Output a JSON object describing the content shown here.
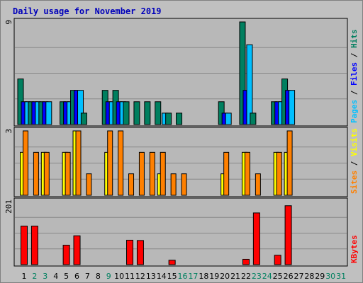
{
  "chart_data": {
    "type": "bar",
    "title": "Daily usage for November 2019",
    "x": [
      "1",
      "2",
      "3",
      "4",
      "5",
      "6",
      "7",
      "8",
      "9",
      "10",
      "11",
      "12",
      "13",
      "14",
      "15",
      "16",
      "17",
      "18",
      "19",
      "20",
      "21",
      "22",
      "23",
      "24",
      "25",
      "26",
      "27",
      "28",
      "29",
      "30",
      "31"
    ],
    "weekend_days": [
      "2",
      "3",
      "9",
      "16",
      "17",
      "23",
      "24",
      "30",
      "31"
    ],
    "panels": [
      {
        "name": "hits_files_pages",
        "ytick": "9",
        "ylim": [
          0,
          9
        ],
        "label_parts": [
          "Pages",
          "Files",
          "Hits"
        ],
        "series": [
          {
            "name": "Hits",
            "color": "#007f5f",
            "values": [
              4,
              2,
              2,
              0,
              2,
              3,
              1,
              0,
              3,
              3,
              2,
              2,
              2,
              2,
              1,
              1,
              0,
              0,
              0,
              2,
              0,
              9,
              1,
              0,
              2,
              4,
              0,
              0,
              0,
              0,
              0
            ]
          },
          {
            "name": "Files",
            "color": "#0000ff",
            "values": [
              2,
              2,
              2,
              0,
              2,
              3,
              0,
              0,
              2,
              2,
              0,
              0,
              0,
              0,
              0,
              0,
              0,
              0,
              0,
              1,
              0,
              3,
              0,
              0,
              2,
              3,
              0,
              0,
              0,
              0,
              0
            ]
          },
          {
            "name": "Pages",
            "color": "#00bfff",
            "values": [
              2,
              2,
              2,
              0,
              2,
              3,
              0,
              0,
              2,
              2,
              0,
              0,
              0,
              1,
              0,
              0,
              0,
              0,
              0,
              1,
              0,
              7,
              0,
              0,
              2,
              3,
              0,
              0,
              0,
              0,
              0
            ]
          }
        ]
      },
      {
        "name": "visits_sites",
        "ytick": "3",
        "ylim": [
          0,
          3
        ],
        "label_parts": [
          "Sites",
          "Visits"
        ],
        "series": [
          {
            "name": "Visits",
            "color": "#ffff00",
            "values": [
              2,
              0,
              2,
              0,
              2,
              3,
              0,
              0,
              2,
              0,
              0,
              0,
              0,
              1,
              0,
              0,
              0,
              0,
              0,
              1,
              0,
              2,
              0,
              0,
              2,
              2,
              0,
              0,
              0,
              0,
              0
            ]
          },
          {
            "name": "Sites",
            "color": "#ff8000",
            "values": [
              3,
              2,
              2,
              0,
              2,
              3,
              1,
              0,
              3,
              3,
              1,
              2,
              2,
              2,
              1,
              1,
              0,
              0,
              0,
              2,
              0,
              2,
              1,
              0,
              2,
              3,
              0,
              0,
              0,
              0,
              0
            ]
          }
        ]
      },
      {
        "name": "kbytes",
        "ytick": "201",
        "ylim": [
          0,
          201
        ],
        "label_parts": [
          "KBytes"
        ],
        "series": [
          {
            "name": "KBytes",
            "color": "#ff0000",
            "values": [
              123,
              123,
              0,
              0,
              62,
              92,
              0,
              0,
              0,
              0,
              78,
              77,
              0,
              0,
              14,
              0,
              0,
              0,
              0,
              0,
              0,
              17,
              165,
              0,
              30,
              188,
              0,
              0,
              0,
              0,
              0
            ]
          }
        ]
      }
    ]
  }
}
